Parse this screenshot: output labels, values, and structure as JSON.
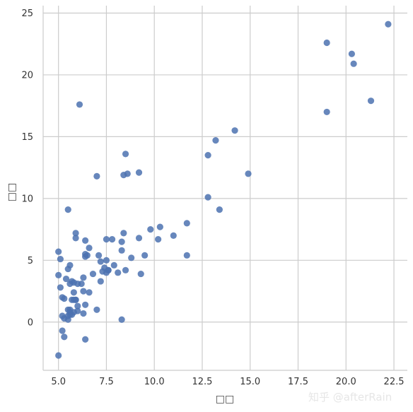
{
  "chart_data": {
    "type": "scatter",
    "title": "",
    "xlabel": "□□",
    "ylabel": "□□",
    "xlim": [
      4.2,
      23.2
    ],
    "ylim": [
      -3.9,
      25.6
    ],
    "xticks": [
      5.0,
      7.5,
      10.0,
      12.5,
      15.0,
      17.5,
      20.0,
      22.5
    ],
    "xtick_labels": [
      "5.0",
      "7.5",
      "10.0",
      "12.5",
      "15.0",
      "17.5",
      "20.0",
      "22.5"
    ],
    "yticks": [
      0,
      5,
      10,
      15,
      20,
      25
    ],
    "ytick_labels": [
      "0",
      "5",
      "10",
      "15",
      "20",
      "25"
    ],
    "grid": true,
    "legend": false,
    "marker_color": "#4c72b0",
    "grid_color": "#cccccc",
    "series": [
      {
        "x": [
          22.2,
          19.0,
          20.3,
          20.4,
          21.3,
          19.0,
          6.1,
          14.2,
          13.2,
          12.8,
          8.5,
          14.9,
          8.6,
          9.2,
          8.4,
          7.0,
          12.8,
          13.4,
          5.5,
          5.9,
          5.9,
          6.4,
          7.5,
          7.8,
          8.4,
          8.3,
          9.8,
          10.2,
          10.3,
          11.0,
          11.7,
          9.2,
          11.7,
          5.0,
          5.1,
          5.6,
          5.5,
          5.7,
          5.8,
          5.6,
          5.4,
          5.3,
          5.8,
          6.0,
          6.3,
          6.4,
          6.4,
          6.5,
          6.6,
          7.1,
          7.2,
          7.3,
          7.4,
          7.5,
          7.5,
          7.6,
          7.6,
          7.9,
          8.1,
          8.3,
          8.5,
          8.8,
          9.5,
          9.3,
          6.0,
          6.8,
          7.2,
          5.1,
          5.0,
          5.2,
          5.5,
          5.6,
          5.8,
          5.9,
          5.7,
          6.0,
          6.2,
          6.3,
          6.6,
          5.2,
          5.3,
          5.5,
          5.6,
          5.8,
          5.6,
          5.5,
          5.7,
          5.9,
          6.3,
          6.4,
          7.0,
          8.3,
          5.2,
          5.3,
          5.0,
          6.4
        ],
        "y": [
          24.1,
          22.6,
          21.7,
          20.9,
          17.9,
          17.0,
          17.6,
          15.5,
          14.7,
          13.5,
          13.6,
          12.0,
          12.0,
          12.1,
          11.9,
          11.8,
          10.1,
          9.1,
          9.1,
          7.2,
          6.8,
          6.6,
          6.7,
          6.7,
          7.2,
          6.5,
          7.5,
          6.7,
          7.7,
          7.0,
          8.0,
          6.8,
          5.4,
          5.7,
          5.1,
          4.6,
          4.3,
          3.3,
          3.2,
          3.1,
          3.5,
          1.9,
          1.8,
          1.3,
          2.5,
          5.3,
          5.5,
          5.4,
          6.0,
          5.4,
          4.9,
          4.1,
          4.4,
          4.0,
          5.0,
          4.2,
          4.2,
          4.6,
          4.0,
          5.8,
          4.2,
          5.2,
          5.4,
          3.9,
          3.1,
          3.9,
          3.3,
          2.8,
          3.8,
          2.0,
          1.0,
          1.0,
          2.4,
          1.8,
          1.8,
          0.9,
          3.1,
          3.6,
          2.4,
          0.5,
          0.3,
          0.2,
          0.8,
          0.8,
          0.6,
          0.5,
          0.6,
          1.8,
          0.7,
          1.4,
          1.0,
          0.2,
          -0.7,
          -1.2,
          -2.7,
          -1.4
        ]
      }
    ]
  },
  "watermark": {
    "text": "知乎 @afterRain"
  }
}
